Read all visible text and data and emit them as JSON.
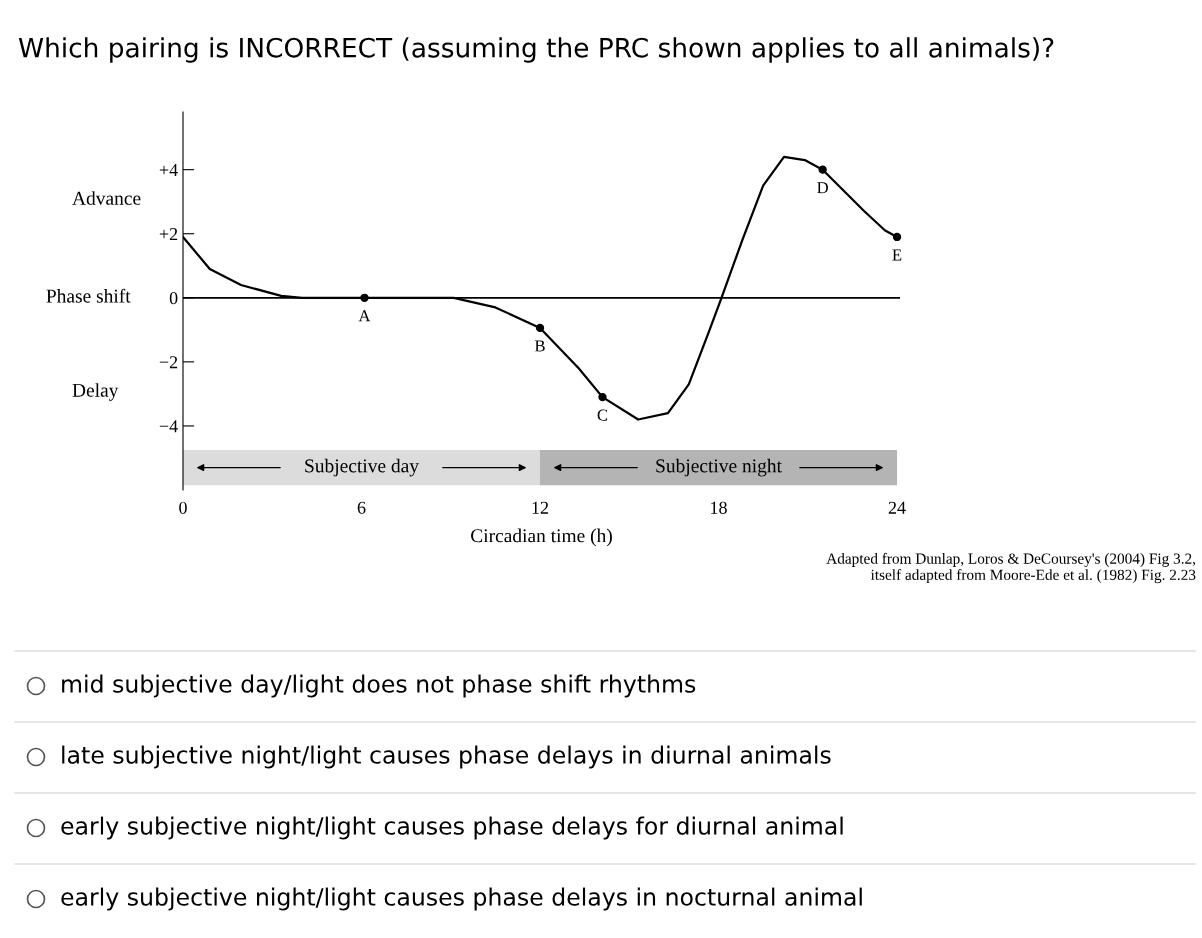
{
  "chart_data": {
    "type": "line",
    "title": "Which pairing is INCORRECT (assuming the PRC shown applies to all animals)?",
    "xlabel": "Circadian time (h)",
    "ylabel": "Phase shift",
    "x": [
      0,
      0.9,
      1.95,
      3.3,
      4.0,
      6.1,
      9.1,
      10.5,
      12.0,
      13.3,
      14.1,
      15.3,
      16.3,
      17.0,
      17.7,
      18.1,
      18.8,
      19.5,
      20.2,
      20.9,
      21.5,
      22.9,
      23.6,
      24.0
    ],
    "series": [
      {
        "color": "#000000",
        "values": [
          1.9,
          0.9,
          0.4,
          0.06,
          0,
          0,
          0,
          -0.3,
          -0.94,
          -2.2,
          -3.1,
          -3.8,
          -3.6,
          -2.7,
          -1.0,
          0,
          1.8,
          3.5,
          4.4,
          4.3,
          4.0,
          2.7,
          2.1,
          1.9
        ]
      },
      {
        "type": "scatter",
        "color": "#000000",
        "x": [
          6.1,
          12.0,
          14.1,
          21.5,
          24.0
        ],
        "values": [
          0,
          -0.94,
          -3.1,
          4.0,
          1.9
        ]
      }
    ],
    "xlim": [
      0,
      24.1
    ],
    "ylim": [
      -6.0,
      5.8
    ],
    "xticks": [
      0,
      6,
      12,
      18,
      24
    ],
    "yticks": [
      {
        "value": 4,
        "label": "+4"
      },
      {
        "value": 2,
        "label": "+2"
      },
      0,
      {
        "value": -2,
        "label": "−2"
      },
      {
        "value": -4,
        "label": "−4"
      }
    ],
    "ref_lines": [
      {
        "axis": "y",
        "value": 0,
        "label": null,
        "color": "#000000"
      }
    ],
    "bands": [
      {
        "axis": "x",
        "from": 0,
        "to": 12,
        "label": "Subjective day",
        "color": "#dcdcdc"
      },
      {
        "axis": "x",
        "from": 12,
        "to": 24,
        "label": "Subjective night",
        "color": "#b4b4b4"
      }
    ],
    "grid": false,
    "annotations": [
      {
        "text": "A",
        "x": 6.1,
        "y": 0
      },
      {
        "text": "B",
        "x": 12.0,
        "y": -0.94
      },
      {
        "text": "C",
        "x": 14.1,
        "y": -3.1
      },
      {
        "text": "D",
        "x": 21.5,
        "y": 4.0
      },
      {
        "text": "E",
        "x": 24.0,
        "y": 1.9
      },
      "Advance",
      "Delay",
      "Adapted from Dunlap, Loros & DeCoursey's (2004) Fig 3.2,\nitself adapted from Moore-Ede et al. (1982) Fig. 2.23",
      "mid subjective day/light does not phase shift rhythms",
      "late subjective night/light causes phase delays in diurnal animals",
      "early subjective night/light causes phase delays for diurnal animal",
      "early subjective night/light causes phase delays in nocturnal animal"
    ]
  }
}
